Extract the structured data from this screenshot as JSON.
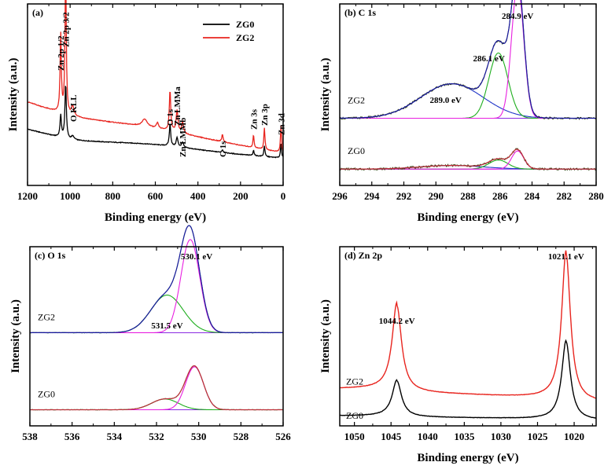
{
  "chart_data": [
    {
      "panel": "a",
      "type": "line",
      "title": "(a)",
      "xlabel": "Binding energy (eV)",
      "ylabel": "Intensity (a.u.)",
      "xlim": [
        1200,
        0
      ],
      "ylim": [
        0,
        1
      ],
      "xticks": [
        1200,
        1000,
        800,
        600,
        400,
        200,
        0
      ],
      "legend": [
        "ZG0",
        "ZG2"
      ],
      "legend_position": "top-right",
      "series": [
        {
          "name": "ZG0",
          "color": "#000000",
          "baseline": 0.27,
          "background_drop": 0.12,
          "peaks": [
            [
              1044.2,
              0.12,
              4
            ],
            [
              1021.1,
              0.3,
              4
            ],
            [
              988,
              0.02,
              8
            ],
            [
              531,
              0.12,
              4
            ],
            [
              498,
              0.05,
              5
            ],
            [
              472,
              0.03,
              5
            ],
            [
              284.9,
              0.015,
              4
            ],
            [
              139,
              0.03,
              3
            ],
            [
              88,
              0.06,
              3
            ],
            [
              10,
              0.08,
              3
            ]
          ]
        },
        {
          "name": "ZG2",
          "color": "#e8251f",
          "baseline": 0.42,
          "background_drop": 0.24,
          "peaks": [
            [
              1044.2,
              0.43,
              3.5
            ],
            [
              1021.1,
              0.8,
              3.5
            ],
            [
              988,
              0.05,
              8
            ],
            [
              650,
              0.04,
              15
            ],
            [
              590,
              0.03,
              6
            ],
            [
              531,
              0.22,
              4
            ],
            [
              498,
              0.12,
              5
            ],
            [
              472,
              0.06,
              5
            ],
            [
              284.9,
              0.04,
              4
            ],
            [
              139,
              0.07,
              3
            ],
            [
              88,
              0.12,
              3
            ],
            [
              10,
              0.15,
              3
            ]
          ]
        }
      ],
      "annotations": [
        {
          "text": "Zn 2p 1/2",
          "x": 1044.2
        },
        {
          "text": "Zn 2p 3/2",
          "x": 1021.1
        },
        {
          "text": "O KLL",
          "x": 985
        },
        {
          "text": "O 1s",
          "x": 531
        },
        {
          "text": "Zn LMMa",
          "x": 498
        },
        {
          "text": "Zn LMMb",
          "x": 472
        },
        {
          "text": "C 1s",
          "x": 284.9
        },
        {
          "text": "Zn 3s",
          "x": 139
        },
        {
          "text": "Zn 3p",
          "x": 88
        },
        {
          "text": "Zn 3d",
          "x": 10
        }
      ]
    },
    {
      "panel": "b",
      "type": "line",
      "title": "(b) C 1s",
      "xlabel": "Binding energy (eV)",
      "ylabel": "Intensity (a.u.)",
      "xlim": [
        296,
        280
      ],
      "ylim": [
        0,
        1
      ],
      "xticks": [
        296,
        294,
        292,
        290,
        288,
        286,
        284,
        282,
        280
      ],
      "samples": [
        {
          "name": "ZG2",
          "baseline": 0.37,
          "components": [
            {
              "center": 289.0,
              "height": 0.19,
              "fwhm": 4.6,
              "color": "#1f35c8"
            },
            {
              "center": 286.1,
              "height": 0.36,
              "fwhm": 1.4,
              "color": "#1fae1f"
            },
            {
              "center": 284.9,
              "height": 0.73,
              "fwhm": 0.9,
              "color": "#e81fe0"
            }
          ]
        },
        {
          "name": "ZG0",
          "baseline": 0.09,
          "components": [
            {
              "center": 289.0,
              "height": 0.02,
              "fwhm": 4.6,
              "color": "#1f35c8"
            },
            {
              "center": 286.1,
              "height": 0.05,
              "fwhm": 1.4,
              "color": "#1fae1f"
            },
            {
              "center": 284.9,
              "height": 0.1,
              "fwhm": 0.9,
              "color": "#e81fe0"
            }
          ]
        }
      ],
      "annotations": [
        {
          "text": "284.9 eV",
          "x": 284.9
        },
        {
          "text": "286.1 eV",
          "x": 286.1
        },
        {
          "text": "289.0 eV",
          "x": 289.0
        }
      ]
    },
    {
      "panel": "c",
      "type": "line",
      "title": "(c) O 1s",
      "xlabel": "",
      "ylabel": "Intensity (a.u.)",
      "xlim": [
        538,
        526
      ],
      "ylim": [
        0,
        1
      ],
      "xticks": [
        538,
        536,
        534,
        532,
        530,
        528,
        526
      ],
      "samples": [
        {
          "name": "ZG2",
          "baseline": 0.52,
          "components": [
            {
              "center": 531.5,
              "height": 0.21,
              "fwhm": 1.8,
              "color": "#1fae1f"
            },
            {
              "center": 530.4,
              "height": 0.52,
              "fwhm": 1.05,
              "color": "#e81fe0"
            }
          ]
        },
        {
          "name": "ZG0",
          "baseline": 0.09,
          "components": [
            {
              "center": 531.6,
              "height": 0.06,
              "fwhm": 1.5,
              "color": "#1fae1f"
            },
            {
              "center": 530.2,
              "height": 0.24,
              "fwhm": 1.0,
              "color": "#e81fe0"
            }
          ]
        }
      ],
      "annotations": [
        {
          "text": "530.1 eV",
          "x": 530.1
        },
        {
          "text": "531.5 eV",
          "x": 531.5
        }
      ]
    },
    {
      "panel": "d",
      "type": "line",
      "title": "(d) Zn 2p",
      "xlabel": "Binding energy (eV)",
      "ylabel": "Intensity (a.u.)",
      "xlim": [
        1052,
        1017
      ],
      "ylim": [
        0,
        1
      ],
      "xticks": [
        1050,
        1045,
        1040,
        1035,
        1030,
        1025,
        1020
      ],
      "series": [
        {
          "name": "ZG2",
          "color": "#e8251f",
          "baseline": 0.13,
          "step": 0.06,
          "peaks": [
            [
              1044.2,
              0.48,
              1.4
            ],
            [
              1021.1,
              0.83,
              1.3
            ]
          ]
        },
        {
          "name": "ZG0",
          "color": "#000000",
          "baseline": 0.03,
          "step": 0.02,
          "peaks": [
            [
              1044.2,
              0.2,
              1.4
            ],
            [
              1021.1,
              0.44,
              1.3
            ]
          ]
        }
      ],
      "annotations": [
        {
          "text": "1044.2 eV",
          "x": 1044.2
        },
        {
          "text": "1021.1 eV",
          "x": 1021.1
        }
      ]
    }
  ]
}
